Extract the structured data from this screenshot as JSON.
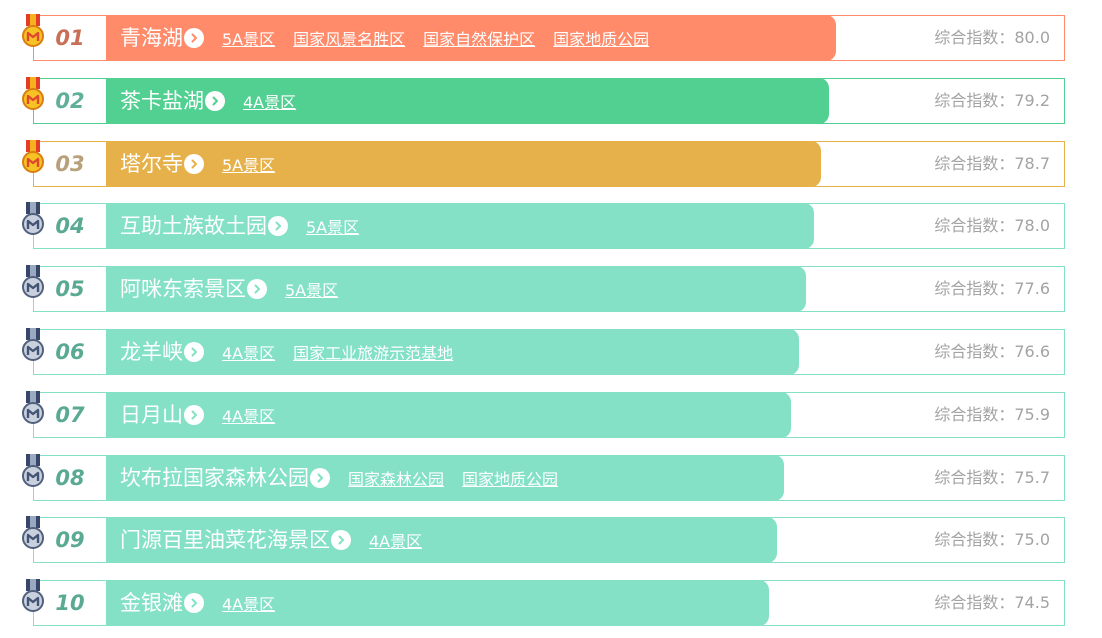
{
  "score_label": "综合指数：",
  "colors": {
    "coral": "#ff8b6b",
    "green": "#52d092",
    "amber": "#e6b14a",
    "mint": "#84e1c5",
    "gold_medal": "#e9a21a",
    "silver_medal": "#5b6f92"
  },
  "items": [
    {
      "rank": "01",
      "name": "青海湖",
      "tags": [
        "5A景区",
        "国家风景名胜区",
        "国家自然保护区",
        "国家地质公园"
      ],
      "score": "80.0",
      "fill": 0.98,
      "bar_color": "#ff8b6b",
      "border_color": "#ff8b6b",
      "rank_color": "#c96f55",
      "medal": "gold-medal-icon"
    },
    {
      "rank": "02",
      "name": "茶卡盐湖",
      "tags": [
        "4A景区"
      ],
      "score": "79.2",
      "fill": 0.97,
      "bar_color": "#52d092",
      "border_color": "#52d092",
      "rank_color": "#5fb09a",
      "medal": "gold-medal-icon"
    },
    {
      "rank": "03",
      "name": "塔尔寺",
      "tags": [
        "5A景区"
      ],
      "score": "78.7",
      "fill": 0.96,
      "bar_color": "#e6b14a",
      "border_color": "#e6b14a",
      "rank_color": "#b8a07a",
      "medal": "gold-medal-icon"
    },
    {
      "rank": "04",
      "name": "互助土族故土园",
      "tags": [
        "5A景区"
      ],
      "score": "78.0",
      "fill": 0.95,
      "bar_color": "#84e1c5",
      "border_color": "#84e1c5",
      "rank_color": "#5aaa93",
      "medal": "silver-medal-icon"
    },
    {
      "rank": "05",
      "name": "阿咪东索景区",
      "tags": [
        "5A景区"
      ],
      "score": "77.6",
      "fill": 0.94,
      "bar_color": "#84e1c5",
      "border_color": "#84e1c5",
      "rank_color": "#5aaa93",
      "medal": "silver-medal-icon"
    },
    {
      "rank": "06",
      "name": "龙羊峡",
      "tags": [
        "4A景区",
        "国家工业旅游示范基地"
      ],
      "score": "76.6",
      "fill": 0.93,
      "bar_color": "#84e1c5",
      "border_color": "#84e1c5",
      "rank_color": "#5aaa93",
      "medal": "silver-medal-icon"
    },
    {
      "rank": "07",
      "name": "日月山",
      "tags": [
        "4A景区"
      ],
      "score": "75.9",
      "fill": 0.92,
      "bar_color": "#84e1c5",
      "border_color": "#84e1c5",
      "rank_color": "#5aaa93",
      "medal": "silver-medal-icon"
    },
    {
      "rank": "08",
      "name": "坎布拉国家森林公园",
      "tags": [
        "国家森林公园",
        "国家地质公园"
      ],
      "score": "75.7",
      "fill": 0.91,
      "bar_color": "#84e1c5",
      "border_color": "#84e1c5",
      "rank_color": "#5aaa93",
      "medal": "silver-medal-icon"
    },
    {
      "rank": "09",
      "name": "门源百里油菜花海景区",
      "tags": [
        "4A景区"
      ],
      "score": "75.0",
      "fill": 0.9,
      "bar_color": "#84e1c5",
      "border_color": "#84e1c5",
      "rank_color": "#5aaa93",
      "medal": "silver-medal-icon"
    },
    {
      "rank": "10",
      "name": "金银滩",
      "tags": [
        "4A景区"
      ],
      "score": "74.5",
      "fill": 0.89,
      "bar_color": "#84e1c5",
      "border_color": "#84e1c5",
      "rank_color": "#5aaa93",
      "medal": "silver-medal-icon"
    }
  ]
}
